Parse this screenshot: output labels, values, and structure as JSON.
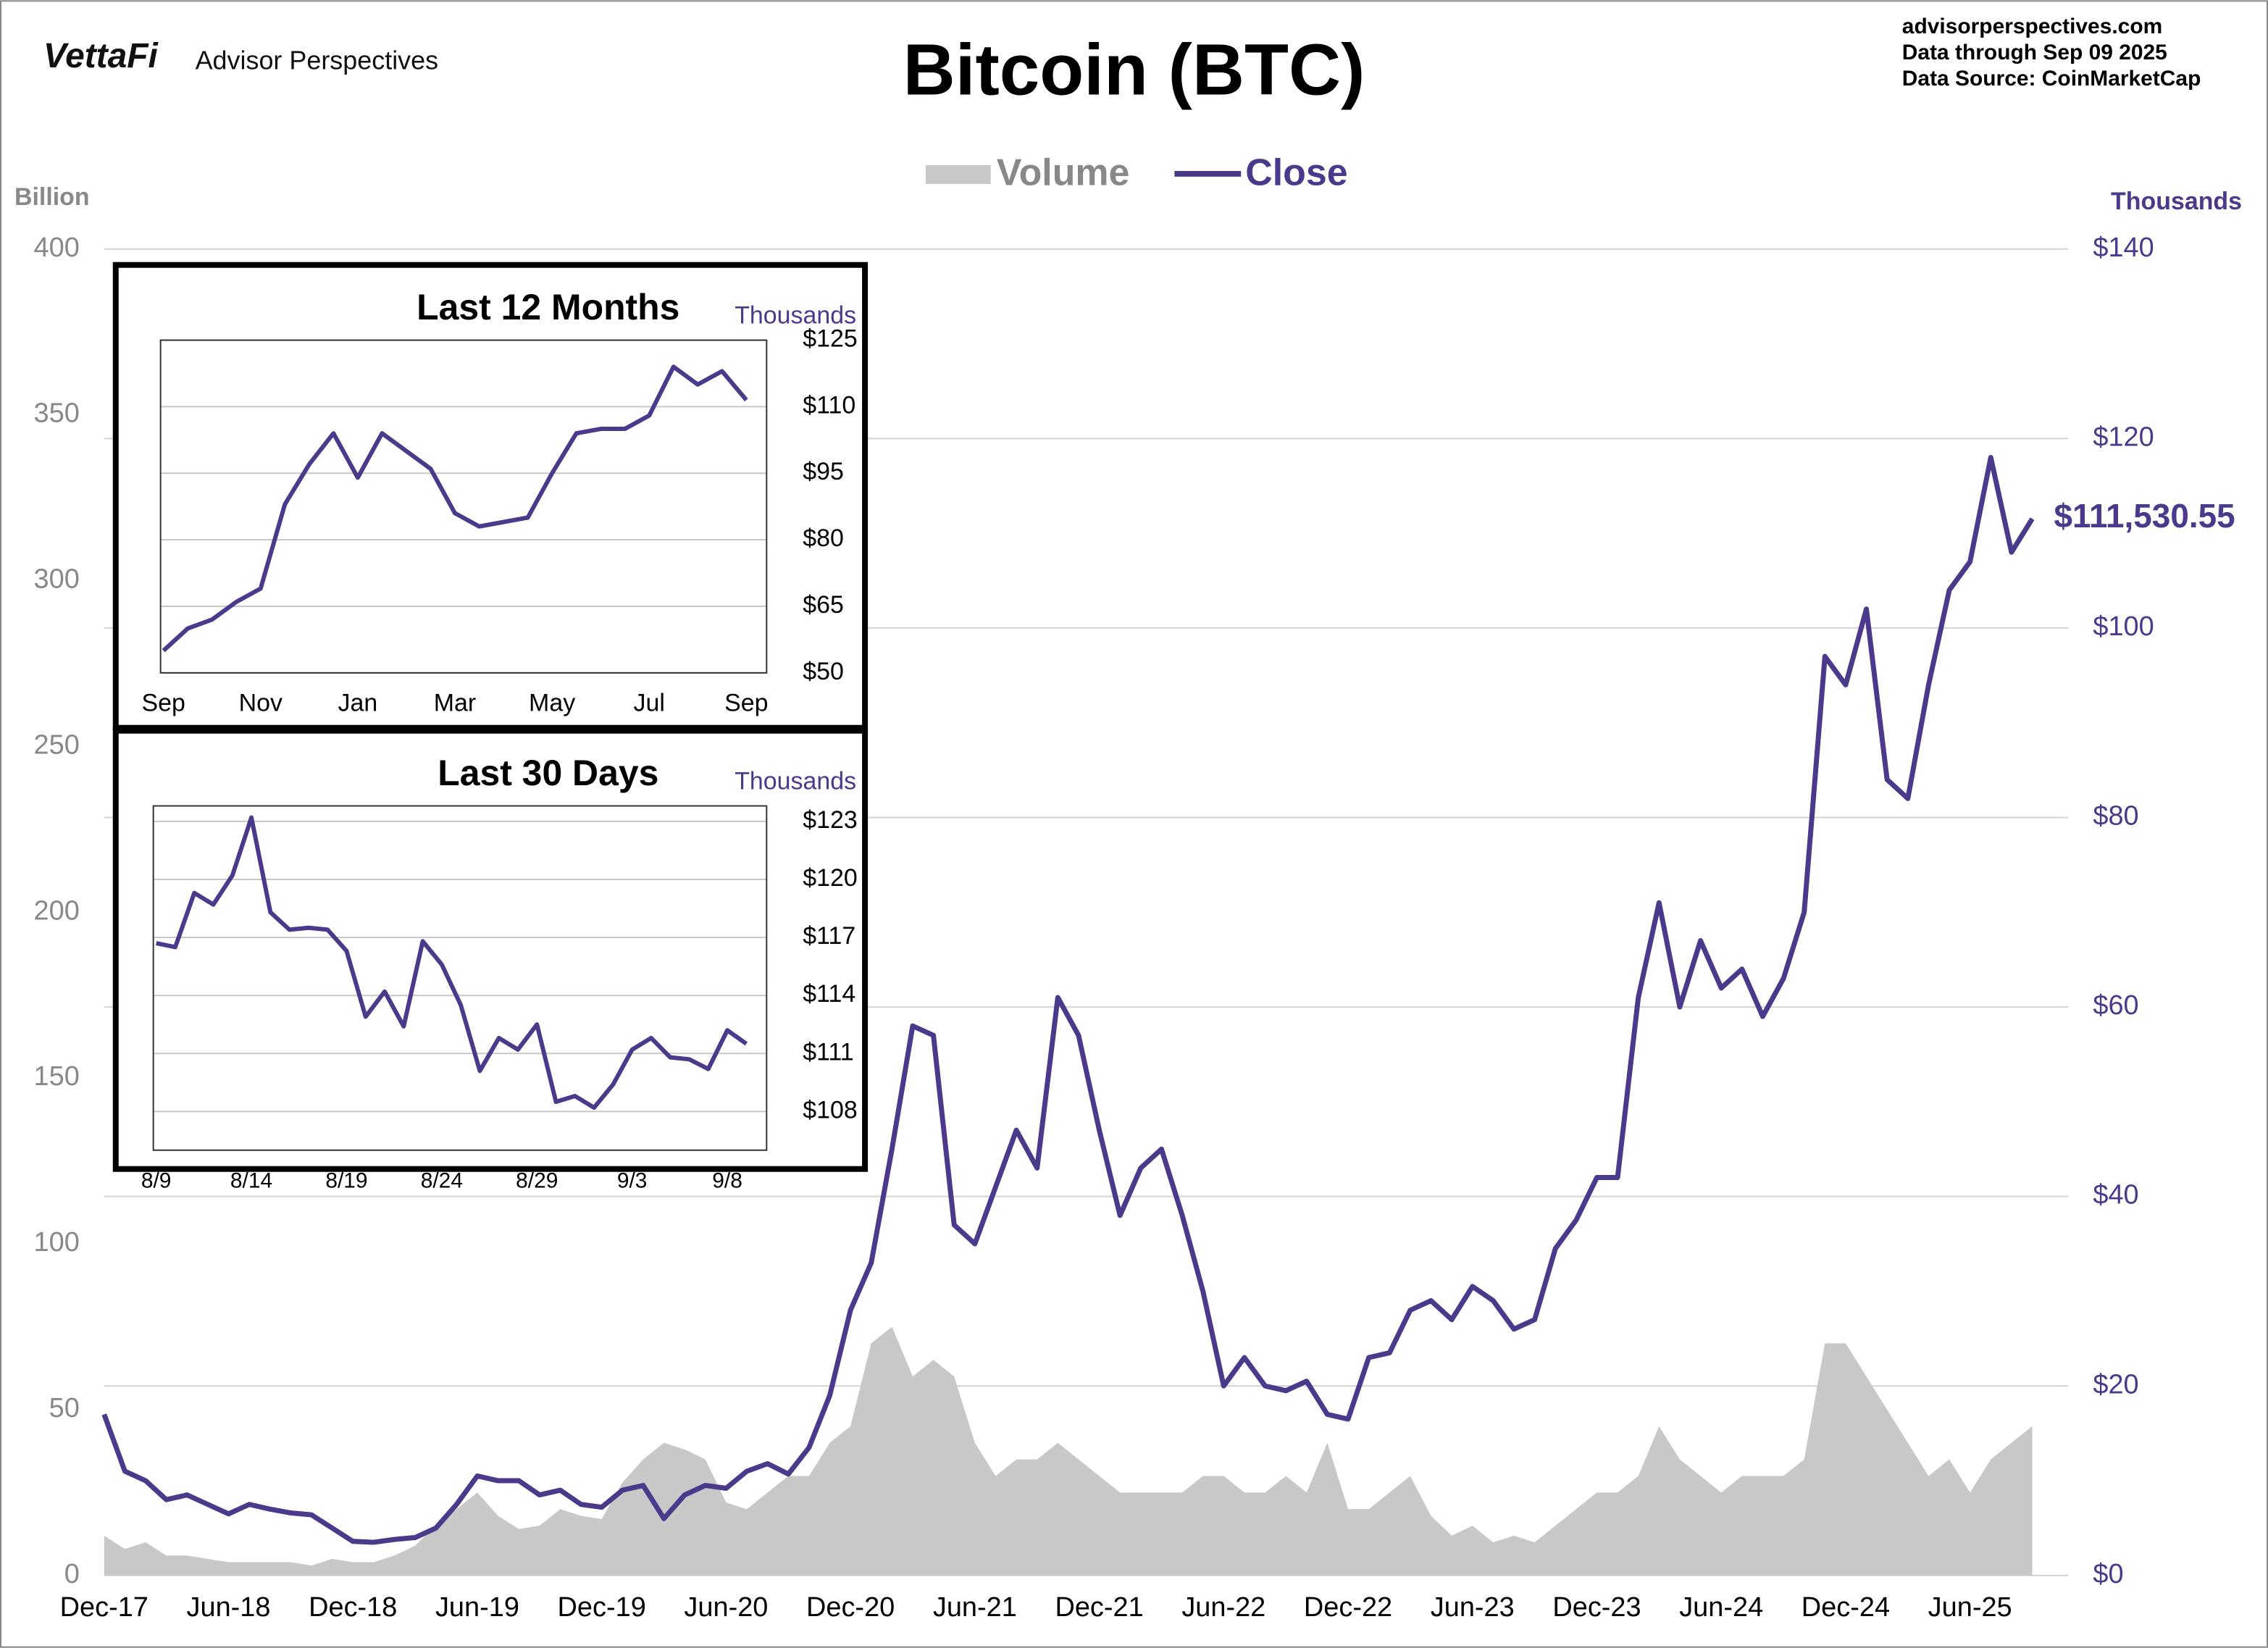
{
  "header": {
    "logo": "VettaFi",
    "brand": "Advisor Perspectives",
    "source_lines": [
      "advisorperspectives.com",
      "Data through  Sep 09 2025",
      "Data Source:  CoinMarketCap"
    ]
  },
  "chart_data": [
    {
      "type": "combo",
      "title": "Bitcoin (BTC)",
      "ylabel": "Billion",
      "y2label": "Thousands",
      "legend": "top",
      "grid": "y2",
      "categories": [
        "Dec-17",
        null,
        null,
        null,
        null,
        null,
        "Jun-18",
        null,
        null,
        null,
        null,
        null,
        "Dec-18",
        null,
        null,
        null,
        null,
        null,
        "Jun-19",
        null,
        null,
        null,
        null,
        null,
        "Dec-19",
        null,
        null,
        null,
        null,
        null,
        "Jun-20",
        null,
        null,
        null,
        null,
        null,
        "Dec-20",
        null,
        null,
        null,
        null,
        null,
        "Jun-21",
        null,
        null,
        null,
        null,
        null,
        "Dec-21",
        null,
        null,
        null,
        null,
        null,
        "Jun-22",
        null,
        null,
        null,
        null,
        null,
        "Dec-22",
        null,
        null,
        null,
        null,
        null,
        "Jun-23",
        null,
        null,
        null,
        null,
        null,
        "Dec-23",
        null,
        null,
        null,
        null,
        null,
        "Jun-24",
        null,
        null,
        null,
        null,
        null,
        "Dec-24",
        null,
        null,
        null,
        null,
        null,
        "Jun-25",
        null,
        null,
        null
      ],
      "series": [
        {
          "name": "Volume",
          "type": "area",
          "color": "#c8c8c8",
          "values": [
            12,
            8,
            10,
            6,
            6,
            5,
            4,
            4,
            4,
            4,
            3,
            5,
            4,
            4,
            6,
            9,
            15,
            20,
            25,
            18,
            14,
            15,
            20,
            18,
            17,
            28,
            35,
            40,
            38,
            35,
            22,
            20,
            25,
            30,
            30,
            40,
            45,
            70,
            75,
            60,
            65,
            60,
            40,
            30,
            35,
            35,
            40,
            35,
            30,
            25,
            25,
            25,
            25,
            30,
            30,
            25,
            25,
            30,
            25,
            40,
            20,
            20,
            25,
            30,
            18,
            12,
            15,
            10,
            12,
            10,
            15,
            20,
            25,
            25,
            30,
            45,
            35,
            30,
            25,
            30,
            30,
            30,
            35,
            70,
            70,
            60,
            50,
            40,
            30,
            35,
            25,
            35,
            40,
            45
          ]
        },
        {
          "name": "Close",
          "type": "line",
          "axis": "y2",
          "color": "#4b3a8c",
          "values": [
            17,
            11,
            10,
            8,
            8.5,
            7.5,
            6.5,
            7.5,
            7,
            6.6,
            6.4,
            5,
            3.6,
            3.5,
            3.8,
            4,
            5,
            7.5,
            10.5,
            10,
            10,
            8.5,
            9,
            7.5,
            7.2,
            9,
            9.5,
            6,
            8.5,
            9.5,
            9.2,
            11,
            11.8,
            10.7,
            13.5,
            19,
            28,
            33,
            45,
            58,
            57,
            37,
            35,
            41,
            47,
            43,
            61,
            57,
            47,
            38,
            43,
            45,
            38,
            30,
            20,
            23,
            20,
            19.5,
            20.5,
            17,
            16.5,
            23,
            23.5,
            28,
            29,
            27,
            30.5,
            29,
            26,
            27,
            34.5,
            37.5,
            42,
            42,
            61,
            71,
            60,
            67,
            62,
            64,
            59,
            63,
            70,
            97,
            94,
            102,
            84,
            82,
            94,
            104,
            107,
            118,
            108,
            111.53055
          ],
          "value_labels": [
            null,
            null,
            null,
            null,
            null,
            null,
            null,
            null,
            null,
            null,
            null,
            null,
            null,
            null,
            null,
            null,
            null,
            null,
            null,
            null,
            null,
            null,
            null,
            null,
            null,
            null,
            null,
            null,
            null,
            null,
            null,
            null,
            null,
            null,
            null,
            null,
            null,
            null,
            null,
            null,
            null,
            null,
            null,
            null,
            null,
            null,
            null,
            null,
            null,
            null,
            null,
            null,
            null,
            null,
            null,
            null,
            null,
            null,
            null,
            null,
            null,
            null,
            null,
            null,
            null,
            null,
            null,
            null,
            null,
            null,
            null,
            null,
            null,
            null,
            null,
            null,
            null,
            null,
            null,
            null,
            null,
            null,
            null,
            null,
            null,
            null,
            null,
            null,
            null,
            null,
            null,
            null,
            null,
            "$111,530.55"
          ]
        }
      ],
      "ylim": [
        0,
        400
      ],
      "yticks": [
        0,
        50,
        100,
        150,
        200,
        250,
        300,
        350,
        400
      ],
      "y2lim": [
        0,
        140
      ],
      "y2ticks": [
        {
          "value": 0,
          "label": "$0"
        },
        {
          "value": 20,
          "label": "$20"
        },
        {
          "value": 40,
          "label": "$40"
        },
        {
          "value": 60,
          "label": "$60"
        },
        {
          "value": 80,
          "label": "$80"
        },
        {
          "value": 100,
          "label": "$100"
        },
        {
          "value": 120,
          "label": "$120"
        },
        {
          "value": 140,
          "label": "$140"
        }
      ]
    },
    {
      "type": "line",
      "title": "Last 12 Months",
      "ylabel": "Thousands",
      "color": "#4b3a8c",
      "categories": [
        "Sep",
        null,
        null,
        null,
        "Nov",
        null,
        null,
        null,
        "Jan",
        null,
        null,
        null,
        "Mar",
        null,
        null,
        null,
        "May",
        null,
        null,
        null,
        "Jul",
        null,
        null,
        null,
        "Sep"
      ],
      "values": [
        55,
        60,
        62,
        66,
        69,
        88,
        97,
        104,
        94,
        104,
        100,
        96,
        86,
        83,
        84,
        85,
        95,
        104,
        105,
        105,
        108,
        119,
        115,
        118,
        111.5
      ],
      "ylim": [
        50,
        125
      ],
      "yticks": [
        {
          "value": 50,
          "label": "$50"
        },
        {
          "value": 65,
          "label": "$65"
        },
        {
          "value": 80,
          "label": "$80"
        },
        {
          "value": 95,
          "label": "$95"
        },
        {
          "value": 110,
          "label": "$110"
        },
        {
          "value": 125,
          "label": "$125"
        }
      ]
    },
    {
      "type": "line",
      "title": "Last 30 Days",
      "ylabel": "Thousands",
      "color": "#4b3a8c",
      "categories": [
        "8/9",
        null,
        null,
        null,
        null,
        "8/14",
        null,
        null,
        null,
        null,
        "8/19",
        null,
        null,
        null,
        null,
        "8/24",
        null,
        null,
        null,
        null,
        "8/29",
        null,
        null,
        null,
        null,
        "9/3",
        null,
        null,
        null,
        null,
        "9/8",
        null
      ],
      "values": [
        116.7,
        116.5,
        119.3,
        118.7,
        120.2,
        123.2,
        118.3,
        117.4,
        117.5,
        117.4,
        116.3,
        112.9,
        114.2,
        112.4,
        116.8,
        115.6,
        113.5,
        110.1,
        111.8,
        111.2,
        112.5,
        108.5,
        108.8,
        108.2,
        109.4,
        111.2,
        111.8,
        110.8,
        110.7,
        110.2,
        112.2,
        111.5
      ],
      "ylim": [
        106,
        123.8
      ],
      "yticks": [
        {
          "value": 108,
          "label": "$108"
        },
        {
          "value": 111,
          "label": "$111"
        },
        {
          "value": 114,
          "label": "$114"
        },
        {
          "value": 117,
          "label": "$117"
        },
        {
          "value": 120,
          "label": "$120"
        },
        {
          "value": 123,
          "label": "$123"
        }
      ]
    }
  ]
}
